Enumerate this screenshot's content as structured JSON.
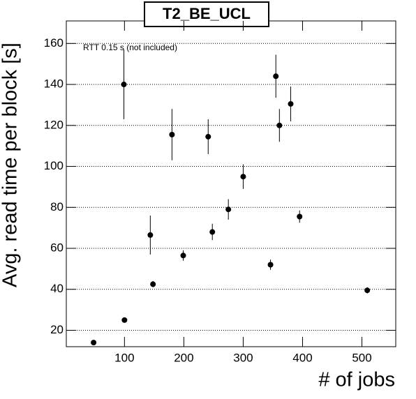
{
  "chart_data": {
    "type": "scatter",
    "title": "T2_BE_UCL",
    "annotation": "RTT 0.15 s (not included)",
    "x_label": "# of jobs",
    "y_label": "Avg. read time per block [s]",
    "x": [
      48,
      100,
      99,
      143.5,
      148,
      180,
      199,
      241,
      248,
      275,
      300,
      346,
      355,
      361,
      380,
      395,
      509
    ],
    "values": [
      14,
      25,
      140,
      66.5,
      42.5,
      115.5,
      56.5,
      114.5,
      68,
      79,
      95,
      52,
      144,
      120,
      130.5,
      75.5,
      39.5
    ],
    "errors": [
      0.5,
      1,
      17,
      9.5,
      1.5,
      12.5,
      2.5,
      8.5,
      4,
      5,
      6,
      2.5,
      10.5,
      8,
      8.5,
      3,
      1.5
    ],
    "color": "#000000",
    "xlim": [
      2,
      557
    ],
    "ylim": [
      12,
      171
    ],
    "xticks": [
      100,
      200,
      300,
      400,
      500
    ],
    "yticks": [
      20,
      40,
      60,
      80,
      100,
      120,
      140,
      160
    ],
    "grid": true
  }
}
